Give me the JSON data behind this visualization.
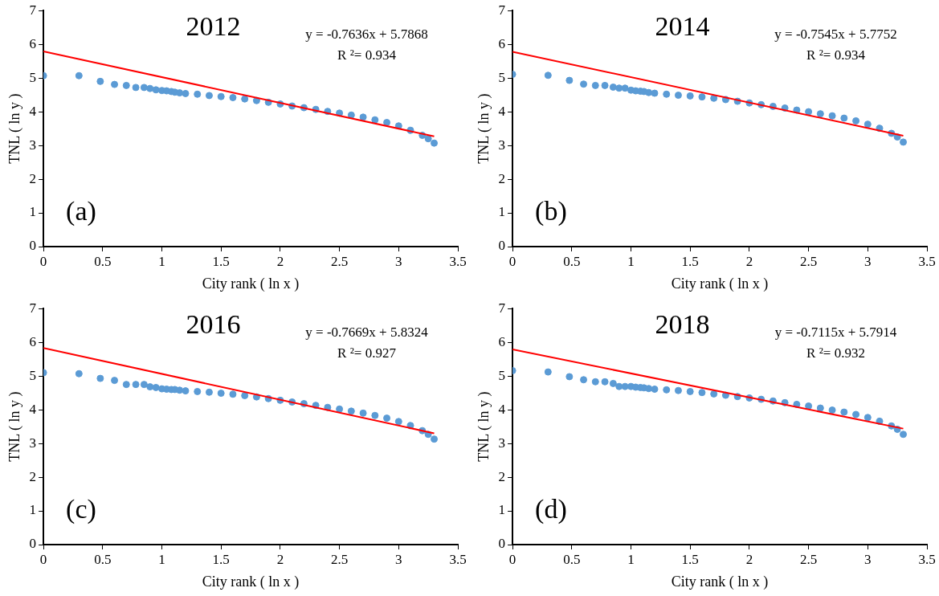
{
  "chart_data": [
    {
      "type": "scatter",
      "title": "2012",
      "xlabel": "City rank ( ln x )",
      "ylabel": "TNL ( ln y )",
      "annotations": [
        "y = -0.7636x + 5.7868",
        "R ²= 0.934",
        "(a)"
      ],
      "xlim": [
        0,
        3.5
      ],
      "xticks": [
        0,
        0.5,
        1,
        1.5,
        2,
        2.5,
        3,
        3.5
      ],
      "ylim": [
        0,
        7
      ],
      "yticks": [
        0,
        1,
        2,
        3,
        4,
        5,
        6,
        7
      ],
      "grid": false,
      "legend": false,
      "marker": "circle",
      "series": [
        {
          "color": "#5b9bd5",
          "x": [
            0,
            0.3,
            0.48,
            0.6,
            0.7,
            0.78,
            0.85,
            0.9,
            0.95,
            1,
            1.04,
            1.08,
            1.11,
            1.15,
            1.2,
            1.3,
            1.4,
            1.5,
            1.6,
            1.7,
            1.8,
            1.9,
            2,
            2.1,
            2.2,
            2.3,
            2.4,
            2.5,
            2.6,
            2.7,
            2.8,
            2.9,
            3,
            3.1,
            3.2,
            3.25,
            3.3
          ],
          "values": [
            5.07,
            5.07,
            4.9,
            4.81,
            4.78,
            4.72,
            4.72,
            4.69,
            4.65,
            4.63,
            4.62,
            4.6,
            4.58,
            4.56,
            4.54,
            4.52,
            4.48,
            4.45,
            4.42,
            4.38,
            4.33,
            4.28,
            4.23,
            4.17,
            4.12,
            4.07,
            4.01,
            3.96,
            3.9,
            3.84,
            3.76,
            3.68,
            3.58,
            3.45,
            3.3,
            3.2,
            3.07
          ]
        },
        {
          "type": "line",
          "color": "#ff0000",
          "marker": "none",
          "x": [
            0,
            3.3
          ],
          "values": [
            5.79,
            3.27
          ]
        }
      ]
    },
    {
      "type": "scatter",
      "title": "2014",
      "xlabel": "City rank ( ln x )",
      "ylabel": "TNL ( ln y )",
      "annotations": [
        "y = -0.7545x + 5.7752",
        "R ²= 0.934",
        "(b)"
      ],
      "xlim": [
        0,
        3.5
      ],
      "xticks": [
        0,
        0.5,
        1,
        1.5,
        2,
        2.5,
        3,
        3.5
      ],
      "ylim": [
        0,
        7
      ],
      "yticks": [
        0,
        1,
        2,
        3,
        4,
        5,
        6,
        7
      ],
      "grid": false,
      "legend": false,
      "marker": "circle",
      "series": [
        {
          "color": "#5b9bd5",
          "x": [
            0,
            0.3,
            0.48,
            0.6,
            0.7,
            0.78,
            0.85,
            0.9,
            0.95,
            1,
            1.04,
            1.08,
            1.11,
            1.15,
            1.2,
            1.3,
            1.4,
            1.5,
            1.6,
            1.7,
            1.8,
            1.9,
            2,
            2.1,
            2.2,
            2.3,
            2.4,
            2.5,
            2.6,
            2.7,
            2.8,
            2.9,
            3,
            3.1,
            3.2,
            3.25,
            3.3
          ],
          "values": [
            5.11,
            5.08,
            4.93,
            4.82,
            4.78,
            4.78,
            4.73,
            4.7,
            4.7,
            4.64,
            4.62,
            4.61,
            4.6,
            4.57,
            4.55,
            4.52,
            4.49,
            4.47,
            4.44,
            4.4,
            4.36,
            4.31,
            4.26,
            4.21,
            4.16,
            4.11,
            4.05,
            4,
            3.94,
            3.88,
            3.81,
            3.73,
            3.63,
            3.51,
            3.36,
            3.25,
            3.1
          ]
        },
        {
          "type": "line",
          "color": "#ff0000",
          "marker": "none",
          "x": [
            0,
            3.3
          ],
          "values": [
            5.78,
            3.29
          ]
        }
      ]
    },
    {
      "type": "scatter",
      "title": "2016",
      "xlabel": "City rank ( ln x )",
      "ylabel": "TNL ( ln y )",
      "annotations": [
        "y = -0.7669x + 5.8324",
        "R ²= 0.927",
        "(c)"
      ],
      "xlim": [
        0,
        3.5
      ],
      "xticks": [
        0,
        0.5,
        1,
        1.5,
        2,
        2.5,
        3,
        3.5
      ],
      "ylim": [
        0,
        7
      ],
      "yticks": [
        0,
        1,
        2,
        3,
        4,
        5,
        6,
        7
      ],
      "grid": false,
      "legend": false,
      "marker": "circle",
      "series": [
        {
          "color": "#5b9bd5",
          "x": [
            0,
            0.3,
            0.48,
            0.6,
            0.7,
            0.78,
            0.85,
            0.9,
            0.95,
            1,
            1.04,
            1.08,
            1.11,
            1.15,
            1.2,
            1.3,
            1.4,
            1.5,
            1.6,
            1.7,
            1.8,
            1.9,
            2,
            2.1,
            2.2,
            2.3,
            2.4,
            2.5,
            2.6,
            2.7,
            2.8,
            2.9,
            3,
            3.1,
            3.2,
            3.25,
            3.3
          ],
          "values": [
            5.1,
            5.07,
            4.93,
            4.87,
            4.75,
            4.75,
            4.75,
            4.68,
            4.66,
            4.62,
            4.61,
            4.6,
            4.6,
            4.58,
            4.56,
            4.54,
            4.52,
            4.49,
            4.46,
            4.42,
            4.38,
            4.33,
            4.28,
            4.23,
            4.18,
            4.13,
            4.07,
            4.02,
            3.96,
            3.9,
            3.83,
            3.75,
            3.65,
            3.53,
            3.38,
            3.27,
            3.13
          ]
        },
        {
          "type": "line",
          "color": "#ff0000",
          "marker": "none",
          "x": [
            0,
            3.3
          ],
          "values": [
            5.83,
            3.3
          ]
        }
      ]
    },
    {
      "type": "scatter",
      "title": "2018",
      "xlabel": "City rank ( ln x )",
      "ylabel": "TNL ( ln y )",
      "annotations": [
        "y = -0.7115x + 5.7914",
        "R ²= 0.932",
        "(d)"
      ],
      "xlim": [
        0,
        3.5
      ],
      "xticks": [
        0,
        0.5,
        1,
        1.5,
        2,
        2.5,
        3,
        3.5
      ],
      "ylim": [
        0,
        7
      ],
      "yticks": [
        0,
        1,
        2,
        3,
        4,
        5,
        6,
        7
      ],
      "grid": false,
      "legend": false,
      "marker": "circle",
      "series": [
        {
          "color": "#5b9bd5",
          "x": [
            0,
            0.3,
            0.48,
            0.6,
            0.7,
            0.78,
            0.85,
            0.9,
            0.95,
            1,
            1.04,
            1.08,
            1.11,
            1.15,
            1.2,
            1.3,
            1.4,
            1.5,
            1.6,
            1.7,
            1.8,
            1.9,
            2,
            2.1,
            2.2,
            2.3,
            2.4,
            2.5,
            2.6,
            2.7,
            2.8,
            2.9,
            3,
            3.1,
            3.2,
            3.25,
            3.3
          ],
          "values": [
            5.16,
            5.12,
            4.98,
            4.89,
            4.83,
            4.83,
            4.78,
            4.69,
            4.69,
            4.69,
            4.67,
            4.66,
            4.65,
            4.63,
            4.61,
            4.59,
            4.57,
            4.54,
            4.51,
            4.47,
            4.43,
            4.39,
            4.35,
            4.31,
            4.26,
            4.21,
            4.16,
            4.11,
            4.05,
            3.99,
            3.93,
            3.86,
            3.77,
            3.66,
            3.52,
            3.42,
            3.27
          ]
        },
        {
          "type": "line",
          "color": "#ff0000",
          "marker": "none",
          "x": [
            0,
            3.3
          ],
          "values": [
            5.79,
            3.44
          ]
        }
      ]
    }
  ]
}
